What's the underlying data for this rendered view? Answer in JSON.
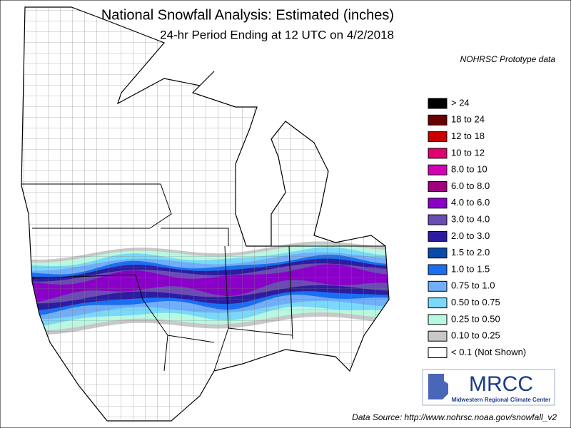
{
  "title": "National Snowfall Analysis: Estimated (inches)",
  "subtitle": "24-hr Period Ending at 12 UTC on 4/2/2018",
  "note": "NOHRSC Prototype data",
  "legend": [
    {
      "label": "> 24",
      "color": "#000000"
    },
    {
      "label": "18 to 24",
      "color": "#6b0000"
    },
    {
      "label": "12 to 18",
      "color": "#cc0000"
    },
    {
      "label": "10 to 12",
      "color": "#e0006e"
    },
    {
      "label": "8.0 to 10",
      "color": "#d400b4"
    },
    {
      "label": "6.0 to 8.0",
      "color": "#a0007e"
    },
    {
      "label": "4.0 to 6.0",
      "color": "#8a00c8"
    },
    {
      "label": "3.0 to 4.0",
      "color": "#6a4cb4"
    },
    {
      "label": "2.0 to 3.0",
      "color": "#2e1ca0"
    },
    {
      "label": "1.5 to 2.0",
      "color": "#0a4aa8"
    },
    {
      "label": "1.0 to 1.5",
      "color": "#1a6ef0"
    },
    {
      "label": "0.75 to 1.0",
      "color": "#72aef8"
    },
    {
      "label": "0.50 to 0.75",
      "color": "#7ad8f8"
    },
    {
      "label": "0.25 to 0.50",
      "color": "#b8f8e0"
    },
    {
      "label": "0.10 to 0.25",
      "color": "#c8c8c8"
    },
    {
      "label": "< 0.1 (Not Shown)",
      "color": "#ffffff"
    }
  ],
  "logo": {
    "name": "MRCC",
    "full_name": "Midwestern Regional Climate Center"
  },
  "source": "Data Source: http://www.nohrsc.noaa.gov/snowfall_v2"
}
